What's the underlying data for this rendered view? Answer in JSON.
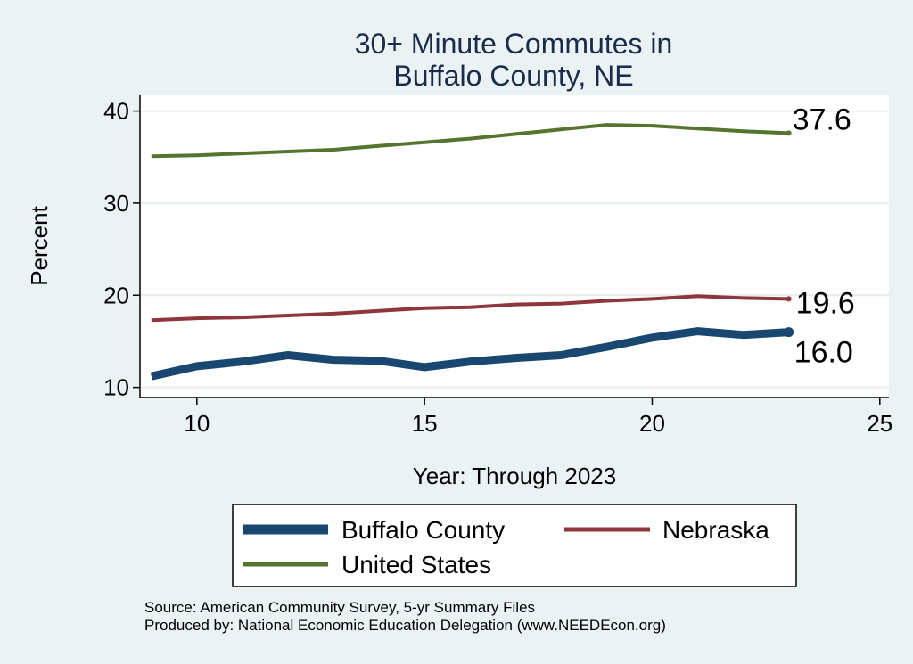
{
  "chart_data": {
    "type": "line",
    "title": [
      "30+ Minute Commutes in",
      "Buffalo County, NE"
    ],
    "xlabel": "Year: Through 2023",
    "ylabel": "Percent",
    "xlim": [
      8.75,
      25.2
    ],
    "ylim": [
      8.9,
      41.7
    ],
    "xticks": [
      10,
      15,
      20,
      25
    ],
    "yticks": [
      10,
      20,
      30,
      40
    ],
    "grid": true,
    "legend_position": "bottom",
    "series": [
      {
        "name": "Buffalo County",
        "color": "#1a476f",
        "width": "thick",
        "end_label": "16.0",
        "x": [
          9,
          10,
          11,
          12,
          13,
          14,
          15,
          16,
          17,
          18,
          19,
          20,
          21,
          22,
          23
        ],
        "y": [
          11.2,
          12.3,
          12.8,
          13.5,
          13.0,
          12.9,
          12.2,
          12.8,
          13.2,
          13.5,
          14.4,
          15.4,
          16.1,
          15.7,
          16.0
        ]
      },
      {
        "name": "Nebraska",
        "color": "#90353b",
        "width": "medium",
        "end_label": "19.6",
        "x": [
          9,
          10,
          11,
          12,
          13,
          14,
          15,
          16,
          17,
          18,
          19,
          20,
          21,
          22,
          23
        ],
        "y": [
          17.3,
          17.5,
          17.6,
          17.8,
          18.0,
          18.3,
          18.6,
          18.7,
          19.0,
          19.1,
          19.4,
          19.6,
          19.9,
          19.7,
          19.6
        ]
      },
      {
        "name": "United States",
        "color": "#55752f",
        "width": "medium",
        "end_label": "37.6",
        "x": [
          9,
          10,
          11,
          12,
          13,
          14,
          15,
          16,
          17,
          18,
          19,
          20,
          21,
          22,
          23
        ],
        "y": [
          35.1,
          35.2,
          35.4,
          35.6,
          35.8,
          36.2,
          36.6,
          37.0,
          37.5,
          38.0,
          38.5,
          38.4,
          38.1,
          37.8,
          37.6
        ]
      }
    ],
    "source": [
      "Source: American Community Survey, 5-yr Summary Files",
      "Produced by: National Economic Education Delegation (www.NEEDEcon.org)"
    ]
  }
}
